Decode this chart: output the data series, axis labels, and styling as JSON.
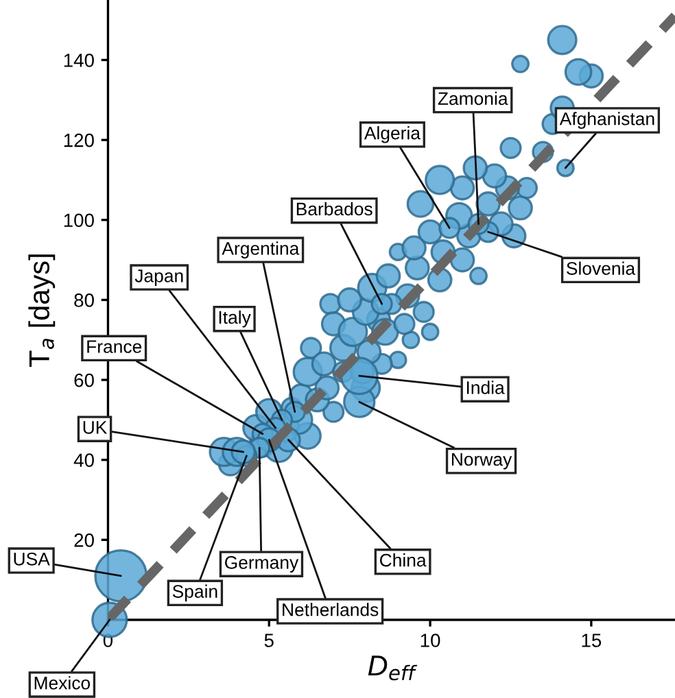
{
  "chart_data": {
    "type": "bubble",
    "xlabel": "D$_{eff}$",
    "ylabel": "T$_{a}$ [days]",
    "xlim": [
      0,
      17.6
    ],
    "ylim": [
      0,
      155
    ],
    "xticks": [
      0,
      5,
      10,
      15
    ],
    "yticks": [
      20,
      40,
      60,
      80,
      100,
      120,
      140
    ],
    "grid": false,
    "series": [
      {
        "type": "bubble",
        "color": "#5ba8d6",
        "x": [
          0.05,
          0.4,
          4.2,
          4.3,
          4.7,
          5.0,
          4.8,
          5.6,
          5.2,
          5.4,
          5.8,
          7.8,
          7.8,
          8.5,
          10.6,
          11.5,
          11.8,
          14.2,
          14.1,
          12.8,
          14.6,
          15.0,
          14.1,
          13.8,
          13.5,
          12.5,
          10.3,
          11.0,
          9.7,
          11.4,
          12.0,
          12.4,
          13.0,
          12.8,
          11.8,
          10.9,
          10.0,
          9.5,
          9.0,
          9.6,
          10.4,
          11.2,
          12.2,
          12.6,
          11.0,
          10.3,
          11.5,
          8.7,
          8.2,
          7.5,
          8.0,
          8.8,
          9.3,
          9.8,
          9.2,
          10.0,
          9.4,
          8.6,
          7.6,
          7.0,
          7.3,
          8.1,
          8.5,
          7.9,
          8.0,
          7.3,
          6.7,
          6.2,
          6.8,
          6.5,
          6.0,
          5.9,
          6.2,
          5.5,
          5.0,
          4.6,
          5.3,
          4.8,
          4.0,
          3.6,
          3.8,
          5.7,
          8.4,
          9.0,
          7.0,
          6.3,
          6.9
        ],
        "values": [
          0,
          11,
          42,
          41,
          43,
          45,
          46.5,
          45,
          48,
          50,
          52,
          61,
          54.5,
          79,
          98,
          99,
          97,
          113,
          145,
          139,
          137,
          136,
          128,
          124,
          117,
          118,
          110,
          108,
          104,
          113,
          111,
          108,
          108,
          103,
          104,
          101,
          97,
          93,
          92,
          88,
          92,
          96,
          99,
          96,
          90,
          85,
          86,
          86,
          83,
          80,
          77,
          79,
          81,
          77,
          74,
          72,
          70,
          72,
          72,
          74,
          68,
          67,
          64,
          62,
          58,
          62,
          64,
          62,
          58,
          55,
          56,
          50,
          46,
          48,
          52,
          48,
          43,
          44,
          42,
          42,
          39,
          53,
          75,
          65,
          52,
          68,
          79
        ],
        "sizes": [
          0.45,
          1,
          0.2,
          0.15,
          0.15,
          0.2,
          0.15,
          0.2,
          0.15,
          0.15,
          0.15,
          0.5,
          0.35,
          0.15,
          0.15,
          0.15,
          0.15,
          0.1,
          0.3,
          0.1,
          0.25,
          0.2,
          0.2,
          0.15,
          0.15,
          0.15,
          0.3,
          0.2,
          0.25,
          0.2,
          0.2,
          0.2,
          0.15,
          0.2,
          0.2,
          0.25,
          0.2,
          0.2,
          0.1,
          0.2,
          0.2,
          0.2,
          0.2,
          0.2,
          0.2,
          0.2,
          0.1,
          0.2,
          0.3,
          0.2,
          0.25,
          0.15,
          0.2,
          0.15,
          0.15,
          0.1,
          0.1,
          0.25,
          0.3,
          0.2,
          0.25,
          0.2,
          0.15,
          0.2,
          0.3,
          0.15,
          0.2,
          0.3,
          0.2,
          0.2,
          0.2,
          0.3,
          0.25,
          0.3,
          0.25,
          0.25,
          0.3,
          0.25,
          0.3,
          0.3,
          0.2,
          0.15,
          0.2,
          0.1,
          0.15,
          0.15,
          0.15
        ]
      },
      {
        "type": "line",
        "color": "#666666",
        "line_style": "dashed",
        "x": [
          0,
          17.6
        ],
        "values": [
          0,
          151
        ]
      }
    ],
    "annotations": [
      {
        "text": "Mexico",
        "x": 0.05,
        "y": 0
      },
      {
        "text": "USA",
        "x": 0.4,
        "y": 11
      },
      {
        "text": "UK",
        "x": 4.2,
        "y": 42
      },
      {
        "text": "Spain",
        "x": 4.3,
        "y": 41
      },
      {
        "text": "Germany",
        "x": 4.7,
        "y": 43
      },
      {
        "text": "Netherlands",
        "x": 5.0,
        "y": 45
      },
      {
        "text": "France",
        "x": 4.8,
        "y": 46.5
      },
      {
        "text": "China",
        "x": 5.6,
        "y": 45
      },
      {
        "text": "Japan",
        "x": 5.2,
        "y": 48
      },
      {
        "text": "Italy",
        "x": 5.4,
        "y": 50
      },
      {
        "text": "Argentina",
        "x": 5.8,
        "y": 52
      },
      {
        "text": "India",
        "x": 7.8,
        "y": 61
      },
      {
        "text": "Norway",
        "x": 7.8,
        "y": 54.5
      },
      {
        "text": "Barbados",
        "x": 8.5,
        "y": 79
      },
      {
        "text": "Algeria",
        "x": 10.6,
        "y": 98
      },
      {
        "text": "Zamonia",
        "x": 11.5,
        "y": 99
      },
      {
        "text": "Slovenia",
        "x": 11.8,
        "y": 97
      },
      {
        "text": "Afghanistan",
        "x": 14.2,
        "y": 113
      }
    ]
  }
}
